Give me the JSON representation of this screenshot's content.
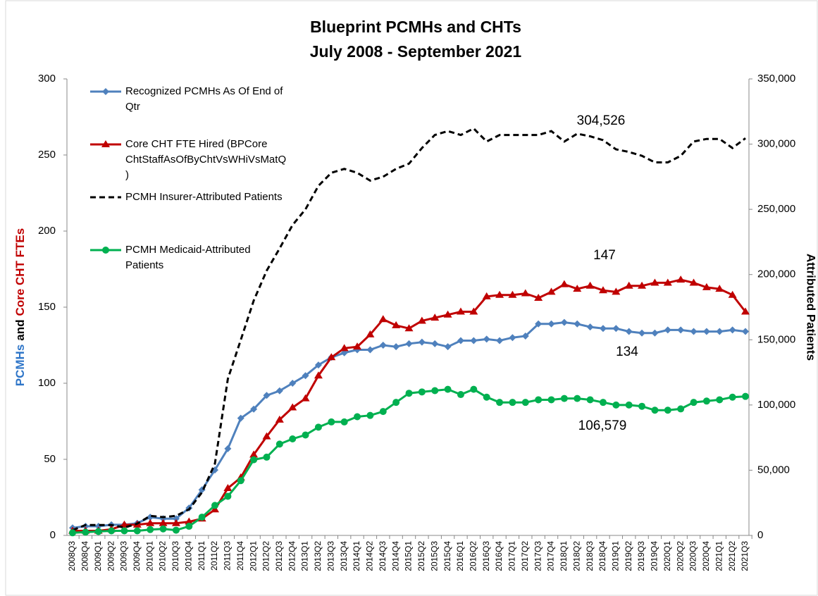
{
  "chart_data": {
    "type": "line",
    "title": "Blueprint PCMHs and CHTs",
    "subtitle": "July 2008 - September 2021",
    "y_label_parts": [
      {
        "text": "PCMHs",
        "color": "#2e75c8"
      },
      {
        "text": "and",
        "color": "#000000"
      },
      {
        "text": "Core CHT FTEs",
        "color": "#c00000"
      }
    ],
    "y2_label": "Attributed Patients",
    "categories": [
      "2008Q3",
      "2008Q4",
      "2009Q1",
      "2009Q2",
      "2009Q3",
      "2009Q4",
      "2010Q1",
      "2010Q2",
      "2010Q3",
      "2010Q4",
      "2011Q1",
      "2011Q2",
      "2011Q3",
      "2011Q4",
      "2012Q1",
      "2012Q2",
      "2012Q3",
      "2012Q4",
      "2013Q1",
      "2013Q2",
      "2013Q3",
      "2013Q4",
      "2014Q1",
      "2014Q2",
      "2014Q3",
      "2014Q4",
      "2015Q1",
      "2015Q2",
      "2015Q3",
      "2015Q4",
      "2016Q1",
      "2016Q2",
      "2016Q3",
      "2016Q4",
      "2017Q1",
      "2017Q2",
      "2017Q3",
      "2017Q4",
      "2018Q1",
      "2018Q2",
      "2018Q3",
      "2018Q4",
      "2019Q1",
      "2019Q2",
      "2019Q3",
      "2019Q4",
      "2020Q1",
      "2020Q2",
      "2020Q3",
      "2020Q4",
      "2021Q1",
      "2021Q2",
      "2021Q3"
    ],
    "series": [
      {
        "name": "Recognized PCMHs As Of End of Qtr",
        "color": "#4f81bd",
        "marker": "diamond",
        "axis": "y",
        "values": [
          5,
          6,
          6,
          7,
          7,
          8,
          12,
          11,
          11,
          18,
          30,
          43,
          57,
          77,
          83,
          92,
          95,
          100,
          105,
          112,
          117,
          120,
          122,
          122,
          125,
          124,
          126,
          127,
          126,
          124,
          128,
          128,
          129,
          128,
          130,
          131,
          139,
          139,
          140,
          139,
          137,
          136,
          136,
          134,
          133,
          133,
          135,
          135,
          134,
          134,
          134,
          135,
          134
        ]
      },
      {
        "name": "Core CHT FTE Hired (BPCore ChtStaffAsOfByChtVsWHiVsMatQ)",
        "color": "#c00000",
        "marker": "triangle",
        "axis": "y",
        "values": [
          3,
          3,
          3,
          4,
          7,
          7,
          8,
          8,
          8,
          9,
          11,
          17,
          31,
          38,
          53,
          65,
          76,
          84,
          90,
          105,
          117,
          123,
          124,
          132,
          142,
          138,
          136,
          141,
          143,
          145,
          147,
          147,
          157,
          158,
          158,
          159,
          156,
          160,
          165,
          162,
          164,
          161,
          160,
          164,
          164,
          166,
          166,
          168,
          166,
          163,
          162,
          158,
          147
        ]
      },
      {
        "name": "PCMH Insurer-Attributed Patients",
        "color": "#000000",
        "marker": "none",
        "dash": true,
        "axis": "y2",
        "values": [
          4000,
          8000,
          8000,
          8000,
          6000,
          9000,
          15000,
          14000,
          15000,
          20000,
          33000,
          55000,
          120000,
          150000,
          180000,
          203000,
          220000,
          238000,
          250000,
          268000,
          278000,
          281000,
          278000,
          272000,
          275000,
          281000,
          285000,
          297000,
          307000,
          310000,
          307000,
          312000,
          302000,
          307000,
          307000,
          307000,
          307000,
          310000,
          302000,
          308000,
          306000,
          303000,
          296000,
          294000,
          291000,
          286000,
          286000,
          291000,
          302000,
          304000,
          304000,
          297000,
          304526
        ]
      },
      {
        "name": "PCMH Medicaid-Attributed Patients",
        "color": "#00b050",
        "marker": "circle",
        "axis": "y2",
        "values": [
          2000,
          2500,
          3000,
          3500,
          3500,
          3500,
          4500,
          5000,
          4000,
          7000,
          14000,
          23000,
          30000,
          42000,
          58000,
          60000,
          70000,
          74000,
          77000,
          83000,
          87000,
          87000,
          91000,
          92000,
          95000,
          102000,
          109000,
          110000,
          111000,
          112000,
          108000,
          112000,
          106000,
          102000,
          102000,
          102000,
          104000,
          104000,
          105000,
          105000,
          104000,
          102000,
          100000,
          100000,
          99000,
          96000,
          96000,
          97000,
          102000,
          103000,
          104000,
          106000,
          106579
        ]
      }
    ],
    "annotations": [
      "304,526",
      "147",
      "134",
      "106,579"
    ],
    "ylim": [
      0,
      300
    ],
    "yticks": [
      0,
      50,
      100,
      150,
      200,
      250,
      300
    ],
    "y2lim": [
      0,
      350000
    ],
    "y2ticks": [
      0,
      {
        "value": 50000,
        "label": "50,000"
      },
      {
        "value": 100000,
        "label": "100,000"
      },
      {
        "value": 150000,
        "label": "150,000"
      },
      {
        "value": 200000,
        "label": "200,000"
      },
      {
        "value": 250000,
        "label": "250,000"
      },
      {
        "value": 300000,
        "label": "300,000"
      },
      {
        "value": 350000,
        "label": "350,000"
      }
    ],
    "grid": false
  }
}
